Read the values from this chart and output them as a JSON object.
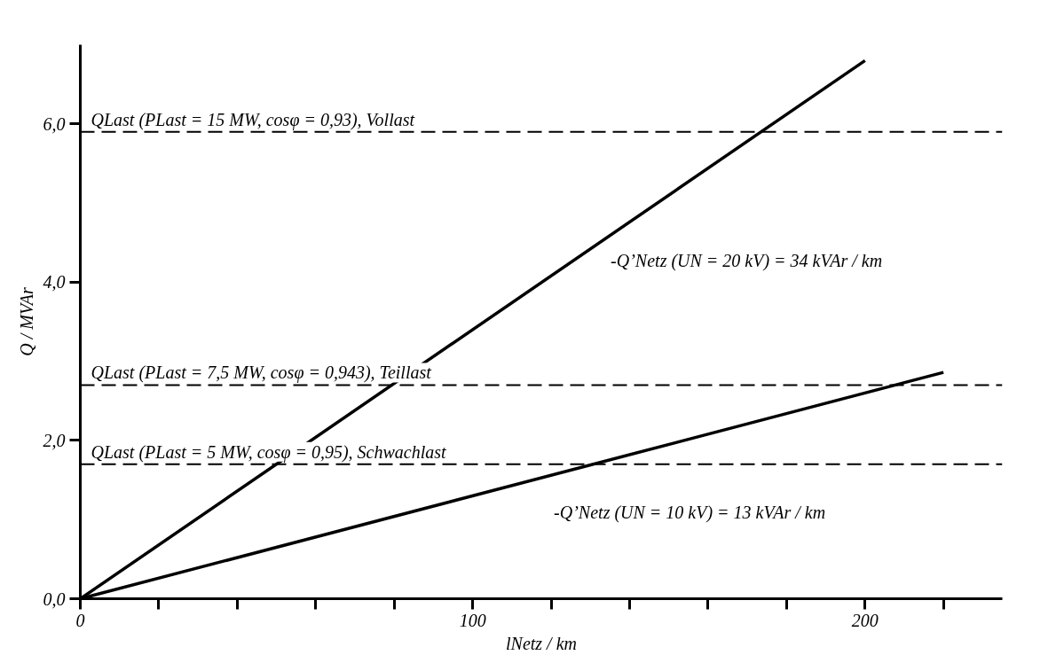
{
  "chart_data": {
    "type": "line",
    "xlabel": "lNetz / km",
    "ylabel": "Q / MVAr",
    "xlim": [
      0,
      235
    ],
    "ylim": [
      0,
      7
    ],
    "xticks": [
      0,
      {
        "value": 20,
        "label": null
      },
      {
        "value": 40,
        "label": null
      },
      {
        "value": 60,
        "label": null
      },
      {
        "value": 80,
        "label": null
      },
      100,
      {
        "value": 120,
        "label": null
      },
      {
        "value": 140,
        "label": null
      },
      {
        "value": 160,
        "label": null
      },
      {
        "value": 180,
        "label": null
      },
      200,
      {
        "value": 220,
        "label": null
      }
    ],
    "yticks": [
      {
        "value": 0,
        "label": "0,0"
      },
      {
        "value": 2,
        "label": "2,0"
      },
      {
        "value": 4,
        "label": "4,0"
      },
      {
        "value": 6,
        "label": "6,0"
      }
    ],
    "series": [
      {
        "name": "-Q’Netz (UN = 20 kV) = 34 kVAr / km",
        "color": "#000000",
        "x": [
          0,
          200
        ],
        "values": [
          0,
          6.8
        ]
      },
      {
        "name": "-Q’Netz (UN = 10 kV) = 13 kVAr / km",
        "color": "#000000",
        "x": [
          0,
          220
        ],
        "values": [
          0,
          2.86
        ]
      }
    ],
    "ref_lines": [
      {
        "axis": "y",
        "value": 5.9,
        "color": "#000000",
        "line_style": "dashed"
      },
      {
        "axis": "y",
        "value": 2.7,
        "color": "#000000",
        "line_style": "dashed"
      },
      {
        "axis": "y",
        "value": 1.7,
        "color": "#000000",
        "line_style": "dashed"
      }
    ],
    "annotations": [
      "QLast (PLast = 15 MW, cosφ = 0,93), Vollast",
      "QLast (PLast = 7,5 MW, cosφ = 0,943), Teillast",
      "QLast (PLast = 5 MW, cosφ = 0,95), Schwachlast"
    ],
    "grid": false,
    "marker": "none",
    "line_style": "solid"
  }
}
